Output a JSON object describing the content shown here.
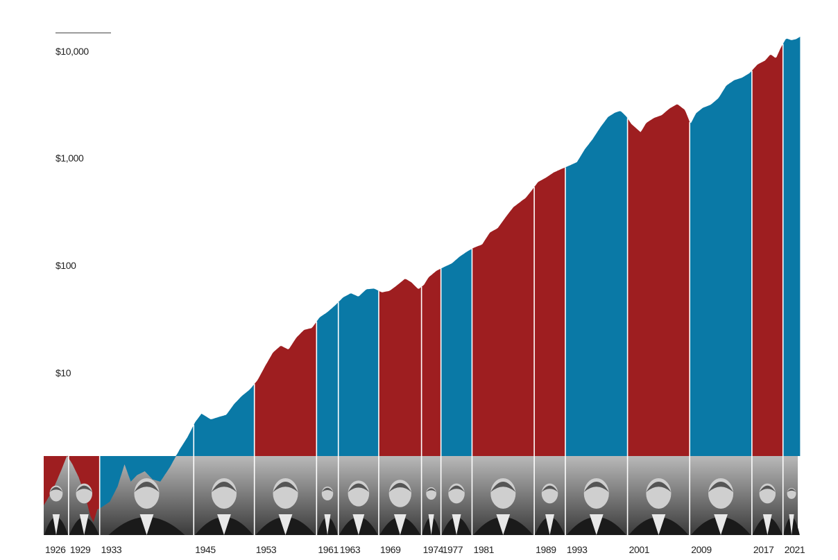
{
  "chart_data": {
    "type": "area",
    "title": "",
    "xlabel": "",
    "ylabel": "",
    "y_scale": "log",
    "ylim": [
      0.38,
      16000
    ],
    "xlim": [
      1926,
      2023
    ],
    "y_ticks": [
      {
        "value": 10,
        "label": "$10"
      },
      {
        "value": 100,
        "label": "$100"
      },
      {
        "value": 1000,
        "label": "$1,000"
      },
      {
        "value": 10000,
        "label": "$10,000"
      }
    ],
    "party_colors": {
      "republican": "#9e1e20",
      "democrat": "#0a79a6"
    },
    "presidencies": [
      {
        "start_label": "1926",
        "start": 1926.0,
        "end": 1929.2,
        "party": "republican"
      },
      {
        "start_label": "1929",
        "start": 1929.2,
        "end": 1933.2,
        "party": "republican"
      },
      {
        "start_label": "1933",
        "start": 1933.2,
        "end": 1945.3,
        "party": "democrat"
      },
      {
        "start_label": "1945",
        "start": 1945.3,
        "end": 1953.1,
        "party": "democrat"
      },
      {
        "start_label": "1953",
        "start": 1953.1,
        "end": 1961.1,
        "party": "republican"
      },
      {
        "start_label": "1961",
        "start": 1961.1,
        "end": 1963.9,
        "party": "democrat"
      },
      {
        "start_label": "1963",
        "start": 1963.9,
        "end": 1969.1,
        "party": "democrat"
      },
      {
        "start_label": "1969",
        "start": 1969.1,
        "end": 1974.6,
        "party": "republican"
      },
      {
        "start_label": "1974",
        "start": 1974.6,
        "end": 1977.1,
        "party": "republican"
      },
      {
        "start_label": "1977",
        "start": 1977.1,
        "end": 1981.1,
        "party": "democrat"
      },
      {
        "start_label": "1981",
        "start": 1981.1,
        "end": 1989.1,
        "party": "republican"
      },
      {
        "start_label": "1989",
        "start": 1989.1,
        "end": 1993.1,
        "party": "republican"
      },
      {
        "start_label": "1993",
        "start": 1993.1,
        "end": 2001.1,
        "party": "democrat"
      },
      {
        "start_label": "2001",
        "start": 2001.1,
        "end": 2009.1,
        "party": "republican"
      },
      {
        "start_label": "2009",
        "start": 2009.1,
        "end": 2017.1,
        "party": "democrat"
      },
      {
        "start_label": "2017",
        "start": 2017.1,
        "end": 2021.1,
        "party": "republican"
      },
      {
        "start_label": "2021",
        "start": 2021.1,
        "end": 2023.3,
        "party": "democrat"
      }
    ],
    "series": [
      {
        "x": [
          1926.0,
          1926.8,
          1927.5,
          1928.3,
          1929.0,
          1929.7,
          1930.5,
          1931.3,
          1932.0,
          1932.4,
          1932.9,
          1933.5,
          1934.5,
          1935.5,
          1936.4,
          1937.2,
          1938.0,
          1939.0,
          1940.0,
          1941.0,
          1942.2,
          1943.5,
          1944.5,
          1945.5,
          1946.3,
          1947.5,
          1948.5,
          1949.5,
          1950.5,
          1951.5,
          1952.5,
          1953.5,
          1954.5,
          1955.5,
          1956.5,
          1957.5,
          1958.5,
          1959.5,
          1960.5,
          1961.5,
          1962.5,
          1963.5,
          1964.5,
          1965.5,
          1966.5,
          1967.5,
          1968.5,
          1969.5,
          1970.5,
          1971.5,
          1972.5,
          1973.3,
          1974.2,
          1974.9,
          1975.5,
          1976.5,
          1977.5,
          1978.5,
          1979.5,
          1980.5,
          1981.4,
          1982.4,
          1983.4,
          1984.4,
          1985.4,
          1986.4,
          1987.6,
          1988.0,
          1988.8,
          1989.6,
          1990.6,
          1991.6,
          1992.6,
          1993.6,
          1994.6,
          1995.6,
          1996.6,
          1997.6,
          1998.6,
          1999.5,
          2000.2,
          2000.9,
          2001.6,
          2002.8,
          2003.5,
          2004.5,
          2005.5,
          2006.5,
          2007.5,
          2008.5,
          2009.2,
          2009.9,
          2010.8,
          2011.8,
          2012.8,
          2013.8,
          2014.8,
          2015.8,
          2016.8,
          2017.8,
          2018.8,
          2019.5,
          2020.2,
          2020.8,
          2021.5,
          2022.2,
          2022.8,
          2023.3
        ],
        "y": [
          0.6,
          0.75,
          0.95,
          1.3,
          1.75,
          1.45,
          1.1,
          0.75,
          0.48,
          0.42,
          0.55,
          0.58,
          0.65,
          0.9,
          1.45,
          1.0,
          1.15,
          1.25,
          1.05,
          1.0,
          1.35,
          2.0,
          2.6,
          3.6,
          4.3,
          3.8,
          4.0,
          4.2,
          5.3,
          6.3,
          7.2,
          8.8,
          12.0,
          16.0,
          18.5,
          17.0,
          22.0,
          26.0,
          27.0,
          34.0,
          38.0,
          44.0,
          52.0,
          57.0,
          53.0,
          62.0,
          63.0,
          58.0,
          60.0,
          68.0,
          78.0,
          72.0,
          62.0,
          68.0,
          80.0,
          92.0,
          100.0,
          108.0,
          125.0,
          140.0,
          152.0,
          162.0,
          210.0,
          230.0,
          290.0,
          360.0,
          420.0,
          440.0,
          520.0,
          620.0,
          680.0,
          760.0,
          820.0,
          880.0,
          950.0,
          1250.0,
          1550.0,
          2000.0,
          2500.0,
          2750.0,
          2850.0,
          2550.0,
          2150.0,
          1800.0,
          2200.0,
          2450.0,
          2600.0,
          3000.0,
          3300.0,
          2900.0,
          2150.0,
          2700.0,
          3050.0,
          3250.0,
          3750.0,
          4900.0,
          5500.0,
          5800.0,
          6400.0,
          7700.0,
          8400.0,
          9600.0,
          8800.0,
          11000.0,
          13500.0,
          13000.0,
          13300.0,
          14000.0
        ]
      }
    ],
    "x_tick_labels": [
      "1926",
      "1929",
      "1933",
      "1945",
      "1953",
      "1961",
      "1963",
      "1969",
      "1974",
      "1977",
      "1981",
      "1989",
      "1993",
      "2001",
      "2009",
      "2017",
      "2021"
    ]
  }
}
